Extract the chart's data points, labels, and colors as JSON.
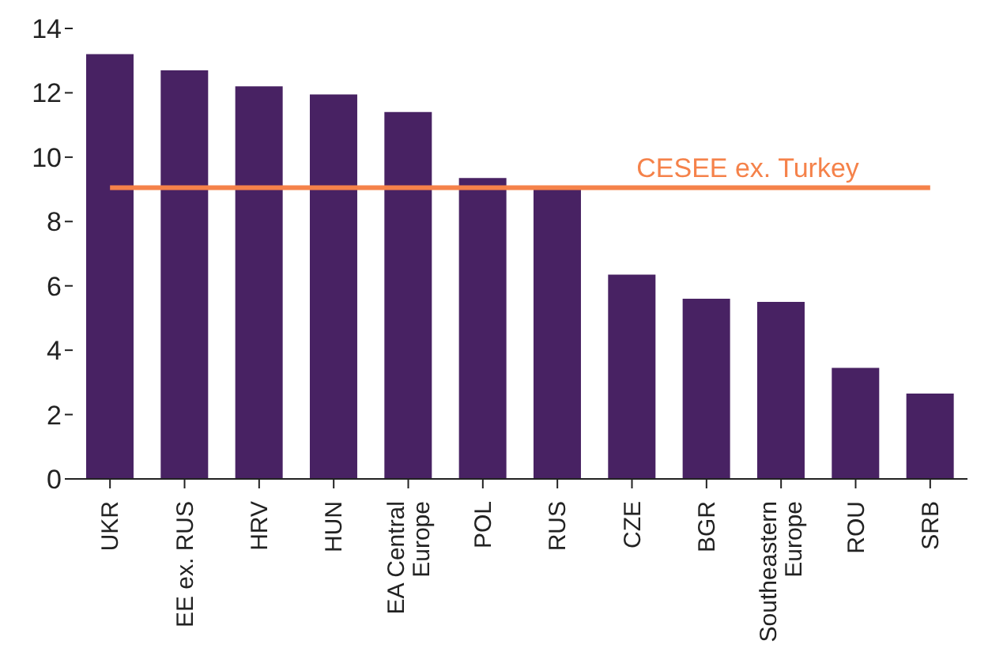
{
  "chart_data": {
    "type": "bar",
    "categories": [
      "UKR",
      "EE ex. RUS",
      "HRV",
      "HUN",
      "EA Central Europe",
      "POL",
      "RUS",
      "CZE",
      "BGR",
      "Southeastern Europe",
      "ROU",
      "SRB"
    ],
    "values": [
      13.2,
      12.7,
      12.2,
      11.95,
      11.4,
      9.35,
      9.1,
      6.35,
      5.6,
      5.5,
      3.45,
      2.65
    ],
    "color": "#482263",
    "ylim": [
      0,
      14
    ],
    "yticks": [
      0,
      2,
      4,
      6,
      8,
      10,
      12,
      14
    ],
    "ref_lines": [
      {
        "axis": "y",
        "value": 9.05,
        "label": "CESEE ex. Turkey",
        "color": "#f5824a"
      }
    ]
  }
}
